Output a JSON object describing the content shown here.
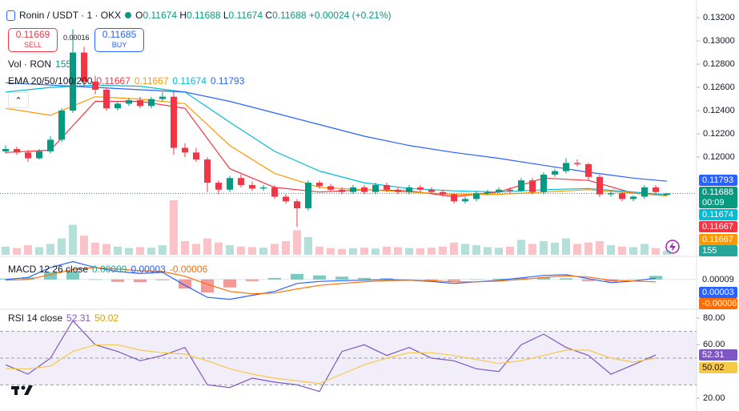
{
  "header": {
    "symbol": "Ronin / USDT · 1 · OKX",
    "o_label": "O",
    "h_label": "H",
    "l_label": "L",
    "c_label": "C",
    "change": "+0.00024 (+0.21%)"
  },
  "trade": {
    "sell_price": 0.11669,
    "sell_label": "SELL",
    "spread": 0.00016,
    "buy_price": 0.11685,
    "buy_label": "BUY"
  },
  "countdown": "00:09",
  "chart_data": [
    {
      "type": "candlestick",
      "up_color": "#089981",
      "down_color": "#f23645",
      "xlim": [
        -0.5,
        59.5
      ],
      "ylim": [
        0.1116,
        0.13352
      ],
      "yticks": [
        {
          "value": 0.132,
          "label": "0.13200"
        },
        {
          "value": 0.13,
          "label": "0.13000"
        },
        {
          "value": 0.128,
          "label": "0.12800"
        },
        {
          "value": 0.126,
          "label": "0.12600"
        },
        {
          "value": 0.124,
          "label": "0.12400"
        },
        {
          "value": 0.122,
          "label": "0.12200"
        },
        {
          "value": 0.12,
          "label": "0.12000"
        }
      ],
      "open": [
        0.1205,
        0.1207,
        0.1204,
        0.1199,
        0.1205,
        0.1215,
        0.124,
        0.129,
        0.1265,
        0.1258,
        0.1242,
        0.1246,
        0.1249,
        0.1244,
        0.125,
        0.1252,
        0.1208,
        0.1204,
        0.1198,
        0.1178,
        0.1172,
        0.1182,
        0.1176,
        0.1173,
        0.1174,
        0.1166,
        0.1162,
        0.1156,
        0.1178,
        0.1175,
        0.1172,
        0.117,
        0.1174,
        0.117,
        0.1176,
        0.1172,
        0.117,
        0.1174,
        0.1172,
        0.117,
        0.1168,
        0.1162,
        0.1164,
        0.1169,
        0.117,
        0.1172,
        0.1171,
        0.118,
        0.117,
        0.1185,
        0.1188,
        0.1195,
        0.1194,
        0.1183,
        0.1168,
        0.1169,
        0.1164,
        0.1166,
        0.1174,
        0.11674
      ],
      "high": [
        0.121,
        0.1209,
        0.1206,
        0.1207,
        0.1218,
        0.1242,
        0.131,
        0.1295,
        0.127,
        0.126,
        0.1248,
        0.1251,
        0.1252,
        0.1252,
        0.1256,
        0.1256,
        0.1212,
        0.1208,
        0.12,
        0.118,
        0.1184,
        0.1185,
        0.1179,
        0.1176,
        0.1176,
        0.1168,
        0.1164,
        0.118,
        0.118,
        0.1177,
        0.1174,
        0.1176,
        0.1176,
        0.1178,
        0.1178,
        0.1174,
        0.1176,
        0.1176,
        0.1174,
        0.1172,
        0.1169,
        0.1166,
        0.1171,
        0.1172,
        0.1174,
        0.1174,
        0.1182,
        0.1182,
        0.1187,
        0.119,
        0.1199,
        0.1198,
        0.1195,
        0.1185,
        0.1171,
        0.117,
        0.1167,
        0.1176,
        0.1176,
        0.11688
      ],
      "low": [
        0.1203,
        0.1202,
        0.1196,
        0.1198,
        0.1203,
        0.1213,
        0.1238,
        0.126,
        0.1254,
        0.124,
        0.124,
        0.1244,
        0.1242,
        0.1242,
        0.1248,
        0.1202,
        0.12,
        0.1196,
        0.117,
        0.1168,
        0.117,
        0.1174,
        0.1171,
        0.1171,
        0.1164,
        0.116,
        0.114,
        0.1154,
        0.1173,
        0.117,
        0.1168,
        0.1168,
        0.1168,
        0.1168,
        0.117,
        0.1168,
        0.1168,
        0.117,
        0.1168,
        0.1166,
        0.116,
        0.116,
        0.1162,
        0.1167,
        0.1169,
        0.1169,
        0.117,
        0.1168,
        0.1168,
        0.1183,
        0.1186,
        0.1192,
        0.118,
        0.1166,
        0.1166,
        0.1162,
        0.1162,
        0.1164,
        0.1168,
        0.11674
      ],
      "close": [
        0.1207,
        0.1204,
        0.1199,
        0.1205,
        0.1215,
        0.124,
        0.129,
        0.1265,
        0.1258,
        0.1242,
        0.1246,
        0.1249,
        0.1244,
        0.125,
        0.1252,
        0.1208,
        0.1204,
        0.1198,
        0.1178,
        0.1172,
        0.1182,
        0.1176,
        0.1173,
        0.1174,
        0.1166,
        0.1162,
        0.1156,
        0.1178,
        0.1175,
        0.1172,
        0.117,
        0.1174,
        0.117,
        0.1176,
        0.1172,
        0.117,
        0.1174,
        0.1172,
        0.117,
        0.1168,
        0.1162,
        0.1164,
        0.1169,
        0.117,
        0.1172,
        0.1171,
        0.118,
        0.117,
        0.1185,
        0.1188,
        0.1195,
        0.1194,
        0.1183,
        0.1168,
        0.1169,
        0.1164,
        0.1166,
        0.1174,
        0.117,
        0.11688
      ],
      "volume": {
        "name": "Vol · RON",
        "lim": [
          0,
          3000
        ],
        "values": [
          300,
          250,
          350,
          280,
          400,
          600,
          1100,
          700,
          450,
          400,
          300,
          250,
          280,
          260,
          350,
          2000,
          500,
          400,
          600,
          450,
          350,
          300,
          280,
          260,
          400,
          500,
          900,
          650,
          300,
          250,
          220,
          240,
          260,
          230,
          300,
          280,
          250,
          240,
          260,
          300,
          450,
          400,
          350,
          280,
          260,
          300,
          550,
          400,
          500,
          450,
          600,
          400,
          450,
          500,
          350,
          300,
          280,
          400,
          250,
          155
        ]
      },
      "ema": {
        "name": "EMA 20/50/100/200",
        "x": [
          0,
          4,
          8,
          12,
          16,
          20,
          24,
          28,
          32,
          36,
          40,
          44,
          48,
          52,
          56,
          59
        ],
        "series": [
          {
            "color": "#f23645",
            "values": [
              0.1204,
              0.1206,
              0.1248,
              0.1248,
              0.1242,
              0.119,
              0.1174,
              0.117,
              0.1172,
              0.1171,
              0.1166,
              0.117,
              0.1182,
              0.118,
              0.1169,
              0.11667
            ]
          },
          {
            "color": "#ff9800",
            "values": [
              0.1242,
              0.1236,
              0.1252,
              0.125,
              0.1246,
              0.121,
              0.1186,
              0.1174,
              0.1172,
              0.117,
              0.1168,
              0.1168,
              0.117,
              0.1172,
              0.1169,
              0.11667
            ]
          },
          {
            "color": "#00bcd4",
            "values": [
              0.1256,
              0.126,
              0.1262,
              0.1261,
              0.1256,
              0.123,
              0.1205,
              0.1188,
              0.1178,
              0.1173,
              0.1171,
              0.117,
              0.1172,
              0.1173,
              0.117,
              0.11674
            ]
          },
          {
            "color": "#2962ff",
            "values": [
              0.1264,
              0.1262,
              0.126,
              0.1258,
              0.1256,
              0.1248,
              0.1238,
              0.1228,
              0.1218,
              0.121,
              0.1204,
              0.1199,
              0.1193,
              0.1187,
              0.1182,
              0.11793
            ]
          }
        ]
      }
    },
    {
      "type": "macd",
      "title": "MACD 12 26 close",
      "xlim": [
        -0.5,
        59.5
      ],
      "ylim": [
        -0.00075,
        0.0005
      ],
      "x": [
        0,
        2,
        4,
        6,
        8,
        10,
        12,
        14,
        16,
        18,
        20,
        22,
        24,
        26,
        28,
        30,
        32,
        34,
        36,
        38,
        40,
        42,
        44,
        46,
        48,
        50,
        52,
        54,
        56,
        58
      ],
      "histogram": {
        "color_pos": "#26a69a",
        "color_neg": "#ef5350",
        "values": [
          2e-05,
          5e-05,
          0.00018,
          0.0002,
          0,
          -6e-05,
          -7e-05,
          -2e-05,
          -0.00023,
          -0.00033,
          -0.0002,
          -4e-05,
          4e-05,
          0.00014,
          0.0001,
          7e-05,
          4e-05,
          3e-05,
          0,
          -2e-05,
          -4e-05,
          0,
          2e-05,
          4e-05,
          5e-05,
          3e-05,
          -4e-05,
          -6e-05,
          0,
          9e-05
        ]
      },
      "series": [
        {
          "color": "#2962ff",
          "values": [
            0,
            5e-05,
            0.0003,
            0.00045,
            0.0003,
            0.0002,
            0.00015,
            0.00018,
            -0.00015,
            -0.00045,
            -0.0005,
            -0.0004,
            -0.0003,
            -0.0001,
            -5e-05,
            -3e-05,
            -2e-05,
            0,
            -2e-05,
            -5e-05,
            -0.0001,
            -6e-05,
            -2e-05,
            4e-05,
            0.0001,
            0.00012,
            2e-05,
            -8e-05,
            -4e-05,
            3e-05
          ]
        },
        {
          "color": "#ff6d00",
          "values": [
            -2e-05,
            0,
            0.00012,
            0.00025,
            0.0003,
            0.00026,
            0.00022,
            0.0002,
            8e-05,
            -0.00012,
            -0.0003,
            -0.00036,
            -0.00034,
            -0.00024,
            -0.00015,
            -0.0001,
            -6e-05,
            -3e-05,
            -2e-05,
            -3e-05,
            -6e-05,
            -6e-05,
            -4e-05,
            0,
            5e-05,
            9e-05,
            6e-05,
            -2e-05,
            -4e-05,
            -6e-05
          ]
        }
      ]
    },
    {
      "type": "rsi",
      "title": "RSI 14 close",
      "xlim": [
        -0.5,
        59.5
      ],
      "ylim": [
        10.4,
        86
      ],
      "yticks": [
        {
          "value": 80,
          "label": "80.00"
        },
        {
          "value": 60,
          "label": "60.00"
        },
        {
          "value": 20,
          "label": "20.00"
        }
      ],
      "band": [
        30,
        70
      ],
      "midline": 50,
      "band_color": "#7e57c2",
      "x": [
        0,
        2,
        4,
        6,
        8,
        10,
        12,
        14,
        16,
        18,
        20,
        22,
        24,
        26,
        28,
        30,
        32,
        34,
        36,
        38,
        40,
        42,
        44,
        46,
        48,
        50,
        52,
        54,
        56,
        58
      ],
      "series": [
        {
          "color": "#7e57c2",
          "values": [
            45,
            38,
            50,
            78,
            60,
            55,
            48,
            52,
            58,
            30,
            28,
            35,
            32,
            30,
            25,
            55,
            60,
            52,
            58,
            50,
            48,
            42,
            40,
            60,
            68,
            58,
            52,
            38,
            45,
            52.31
          ]
        },
        {
          "color": "#f7c948",
          "values": [
            42,
            42,
            44,
            55,
            60,
            60,
            56,
            54,
            53,
            48,
            42,
            38,
            35,
            33,
            31,
            38,
            45,
            50,
            54,
            54,
            52,
            49,
            46,
            48,
            52,
            56,
            56,
            50,
            47,
            50.02
          ]
        }
      ]
    }
  ]
}
